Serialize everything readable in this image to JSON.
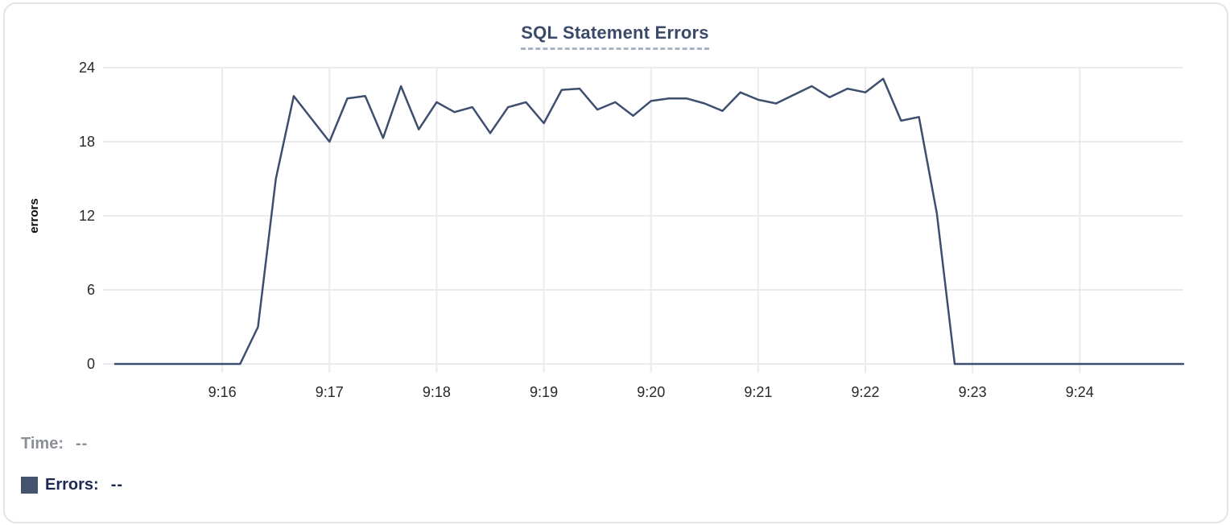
{
  "chart": {
    "title": "SQL Statement Errors",
    "y_axis_label": "errors"
  },
  "tooltip": {
    "time_label": "Time:",
    "time_value": "--",
    "errors_label": "Errors:",
    "errors_value": "--"
  },
  "colors": {
    "series_line": "#3e4e6e",
    "legend_swatch": "#44536e",
    "grid_line": "#ebebed",
    "title_text": "#3a4a68",
    "title_underline": "#a9b3c8",
    "tick_text": "#26282b",
    "time_row_text": "#8b8f97",
    "errors_row_text": "#1c2a52"
  },
  "chart_data": {
    "type": "line",
    "title": "SQL Statement Errors",
    "xlabel": "",
    "ylabel": "errors",
    "x_range": [
      "9:15:00",
      "9:24:58"
    ],
    "ylim": [
      0,
      24
    ],
    "y_ticks": [
      0,
      6,
      12,
      18,
      24
    ],
    "x_ticks": [
      "9:16",
      "9:17",
      "9:18",
      "9:19",
      "9:20",
      "9:21",
      "9:22",
      "9:23",
      "9:24"
    ],
    "grid": true,
    "legend_position": "none",
    "series": [
      {
        "name": "Errors",
        "points": [
          [
            "9:15:00",
            0
          ],
          [
            "9:16:10",
            0
          ],
          [
            "9:16:20",
            3
          ],
          [
            "9:16:30",
            15
          ],
          [
            "9:16:40",
            21.7
          ],
          [
            "9:17:00",
            18
          ],
          [
            "9:17:10",
            21.5
          ],
          [
            "9:17:20",
            21.7
          ],
          [
            "9:17:30",
            18.3
          ],
          [
            "9:17:40",
            22.5
          ],
          [
            "9:17:50",
            19
          ],
          [
            "9:18:00",
            21.2
          ],
          [
            "9:18:10",
            20.4
          ],
          [
            "9:18:20",
            20.8
          ],
          [
            "9:18:30",
            18.7
          ],
          [
            "9:18:40",
            20.8
          ],
          [
            "9:18:50",
            21.2
          ],
          [
            "9:19:00",
            19.5
          ],
          [
            "9:19:10",
            22.2
          ],
          [
            "9:19:20",
            22.3
          ],
          [
            "9:19:30",
            20.6
          ],
          [
            "9:19:40",
            21.2
          ],
          [
            "9:19:50",
            20.1
          ],
          [
            "9:20:00",
            21.3
          ],
          [
            "9:20:10",
            21.5
          ],
          [
            "9:20:20",
            21.5
          ],
          [
            "9:20:30",
            21.1
          ],
          [
            "9:20:40",
            20.5
          ],
          [
            "9:20:50",
            22.0
          ],
          [
            "9:21:00",
            21.4
          ],
          [
            "9:21:10",
            21.1
          ],
          [
            "9:21:20",
            21.8
          ],
          [
            "9:21:30",
            22.5
          ],
          [
            "9:21:40",
            21.6
          ],
          [
            "9:21:50",
            22.3
          ],
          [
            "9:22:00",
            22.0
          ],
          [
            "9:22:10",
            23.1
          ],
          [
            "9:22:20",
            19.7
          ],
          [
            "9:22:30",
            20.0
          ],
          [
            "9:22:40",
            12.2
          ],
          [
            "9:22:50",
            0
          ],
          [
            "9:24:58",
            0
          ]
        ]
      }
    ]
  }
}
